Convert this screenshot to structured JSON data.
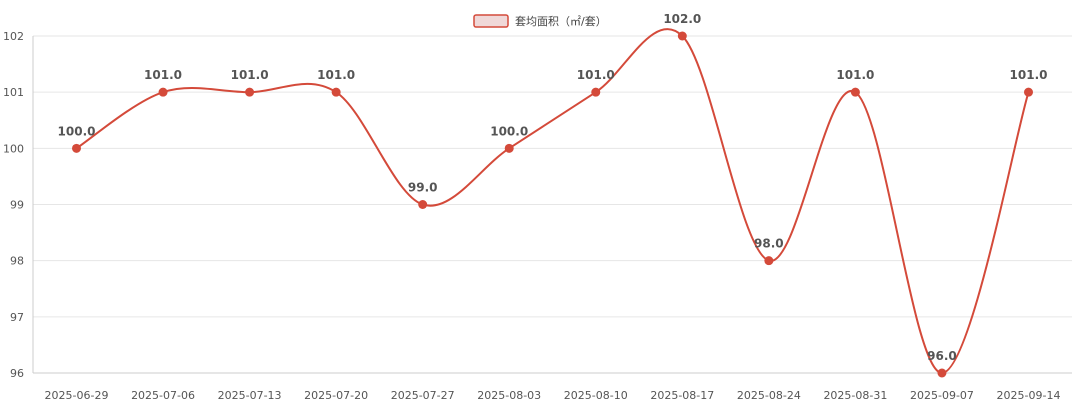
{
  "chart_data": {
    "type": "line",
    "categories": [
      "2025-06-29",
      "2025-07-06",
      "2025-07-13",
      "2025-07-20",
      "2025-07-27",
      "2025-08-03",
      "2025-08-10",
      "2025-08-17",
      "2025-08-24",
      "2025-08-31",
      "2025-09-07",
      "2025-09-14"
    ],
    "series": [
      {
        "name": "套均面积（㎡/套）",
        "values": [
          100.0,
          101.0,
          101.0,
          101.0,
          99.0,
          100.0,
          101.0,
          102.0,
          98.0,
          101.0,
          96.0,
          101.0
        ],
        "labels": [
          "100.0",
          "101.0",
          "101.0",
          "101.0",
          "99.0",
          "100.0",
          "101.0",
          "102.0",
          "98.0",
          "101.0",
          "96.0",
          "101.0"
        ]
      }
    ],
    "y_ticks": [
      "96",
      "97",
      "98",
      "99",
      "100",
      "101",
      "102"
    ],
    "ylim": [
      96,
      102
    ],
    "grid": true,
    "legend": "top-center",
    "colors": {
      "line": "#d44a3a",
      "legend_fill": "#f0d8d8",
      "grid": "#e6e6e6",
      "axis": "#cccccc"
    }
  }
}
